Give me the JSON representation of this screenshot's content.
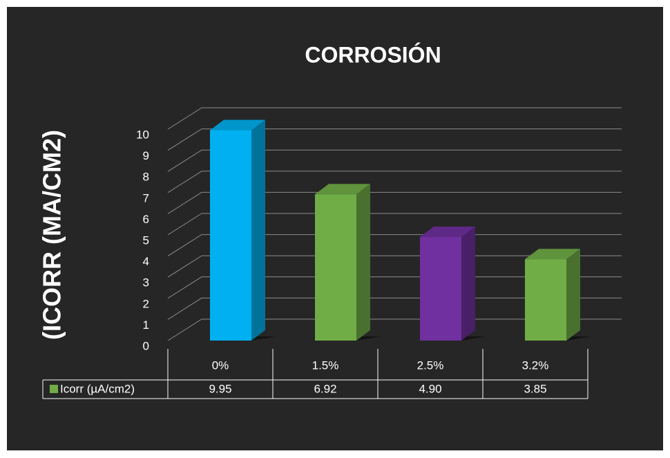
{
  "chart_data": {
    "type": "bar3d",
    "title": "CORROSIÓN",
    "y_label": "(ICORR (MA/CM2)",
    "categories": [
      "0%",
      "1.5%",
      "2.5%",
      "3.2%"
    ],
    "series": [
      {
        "name": "Icorr (µA/cm2)",
        "color": "#70ad47",
        "colors": [
          "#00b0f0",
          "#70ad47",
          "#7030a0",
          "#70ad47"
        ],
        "values": [
          9.95,
          6.92,
          4.9,
          3.85
        ],
        "value_labels": [
          "9.95",
          "6.92",
          "4.90",
          "3.85"
        ]
      }
    ],
    "ylim": [
      0,
      10
    ],
    "yticks": [
      0,
      1,
      2,
      3,
      4,
      5,
      6,
      7,
      8,
      9,
      10
    ],
    "grid": true
  }
}
